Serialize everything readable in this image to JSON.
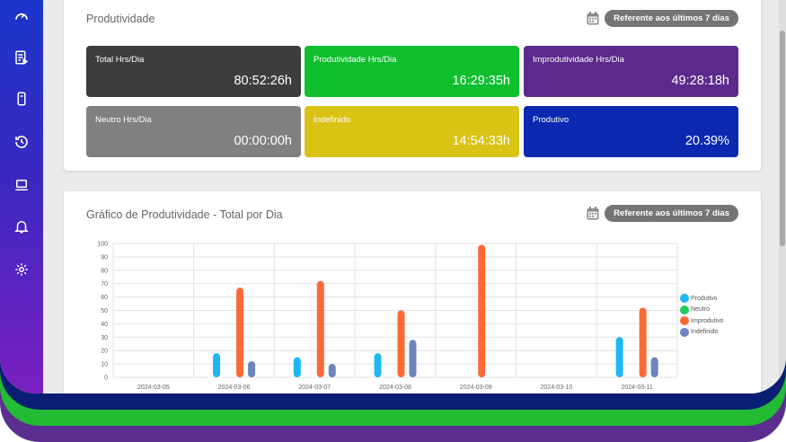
{
  "sidebar": {
    "icons": [
      "speedometer-icon",
      "report-icon",
      "mobile-icon",
      "history-icon",
      "laptop-icon",
      "bell-icon",
      "gear-icon"
    ]
  },
  "productivity": {
    "title": "Produtividade",
    "period_label": "Referente aos últimos 7 dias",
    "stats": [
      {
        "label": "Total Hrs/Dia",
        "value": "80:52:26h",
        "color": "#3d3d3d"
      },
      {
        "label": "Produtividade Hrs/Dia",
        "value": "16:29:35h",
        "color": "#0fbf2e"
      },
      {
        "label": "Improdutividade Hrs/Dia",
        "value": "49:28:18h",
        "color": "#5b2a8c"
      },
      {
        "label": "Neutro Hrs/Dia",
        "value": "00:00:00h",
        "color": "#808080"
      },
      {
        "label": "Indefinido",
        "value": "14:54:33h",
        "color": "#d9c416"
      },
      {
        "label": "Produtivo",
        "value": "20.39%",
        "color": "#0a28b0"
      }
    ]
  },
  "chart_panel": {
    "title": "Gráfico de Produtividade - Total por Dia",
    "period_label": "Referente aos últimos 7 dias"
  },
  "chart_data": {
    "type": "bar",
    "categories": [
      "2024-03-05",
      "2024-03-06",
      "2024-03-07",
      "2024-03-08",
      "2024-03-09",
      "2024-03-10",
      "2024-03-11"
    ],
    "ylim": [
      0,
      100
    ],
    "yticks": [
      "0",
      "10",
      "20",
      "30",
      "40",
      "50",
      "60",
      "70",
      "80",
      "90",
      "100"
    ],
    "grid": true,
    "legend_position": "right",
    "series": [
      {
        "name": "Produtivo",
        "color": "#1fb7f2",
        "values": [
          0,
          18,
          15,
          18,
          0,
          0,
          30
        ]
      },
      {
        "name": "Neutro",
        "color": "#1fcf5e",
        "values": [
          0,
          0,
          0,
          0,
          0,
          0,
          0
        ]
      },
      {
        "name": "Improdutivo",
        "color": "#fb6a35",
        "values": [
          0,
          67,
          72,
          50,
          99,
          0,
          52
        ]
      },
      {
        "name": "Indefinido",
        "color": "#6d85bd",
        "values": [
          0,
          12,
          10,
          28,
          0,
          0,
          15
        ]
      }
    ]
  }
}
